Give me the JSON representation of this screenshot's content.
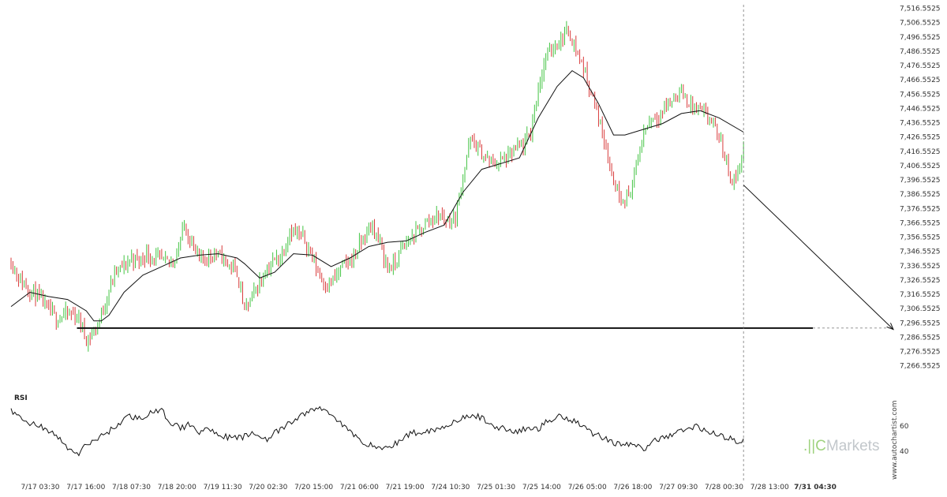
{
  "chart_data": {
    "type": "candlestick",
    "y_ticks": [
      "7,516.5525",
      "7,506.5525",
      "7,496.5525",
      "7,486.5525",
      "7,476.5525",
      "7,466.5525",
      "7,456.5525",
      "7,446.5525",
      "7,436.5525",
      "7,426.5525",
      "7,416.5525",
      "7,406.5525",
      "7,396.5525",
      "7,386.5525",
      "7,376.5525",
      "7,366.5525",
      "7,356.5525",
      "7,346.5525",
      "7,336.5525",
      "7,326.5525",
      "7,316.5525",
      "7,306.5525",
      "7,296.5525",
      "7,286.5525",
      "7,276.5525",
      "7,266.5525"
    ],
    "x_ticks": [
      "7/17 03:30",
      "7/17 16:00",
      "7/18 07:30",
      "7/18 20:00",
      "7/19 11:30",
      "7/20 02:30",
      "7/20 15:00",
      "7/21 06:00",
      "7/21 19:00",
      "7/24 10:30",
      "7/25 01:30",
      "7/25 14:00",
      "7/26 05:00",
      "7/26 18:00",
      "7/27 09:30",
      "7/28 00:30",
      "7/28 13:00",
      "7/31 04:30"
    ],
    "ylim": [
      7262,
      7518
    ],
    "up_color": "#43c443",
    "down_color": "#d83b3b",
    "price_path": [
      [
        0,
        7340
      ],
      [
        4,
        7328
      ],
      [
        8,
        7322
      ],
      [
        12,
        7318
      ],
      [
        16,
        7312
      ],
      [
        20,
        7305
      ],
      [
        24,
        7300
      ],
      [
        28,
        7302
      ],
      [
        32,
        7303
      ],
      [
        36,
        7300
      ],
      [
        40,
        7285
      ],
      [
        44,
        7290
      ],
      [
        48,
        7302
      ],
      [
        52,
        7320
      ],
      [
        56,
        7333
      ],
      [
        60,
        7336
      ],
      [
        64,
        7342
      ],
      [
        68,
        7340
      ],
      [
        72,
        7345
      ],
      [
        76,
        7342
      ],
      [
        80,
        7340
      ],
      [
        84,
        7338
      ],
      [
        88,
        7345
      ],
      [
        92,
        7365
      ],
      [
        96,
        7352
      ],
      [
        100,
        7340
      ],
      [
        104,
        7343
      ],
      [
        108,
        7345
      ],
      [
        112,
        7342
      ],
      [
        116,
        7337
      ],
      [
        120,
        7332
      ],
      [
        124,
        7305
      ],
      [
        128,
        7315
      ],
      [
        132,
        7325
      ],
      [
        136,
        7335
      ],
      [
        140,
        7340
      ],
      [
        144,
        7345
      ],
      [
        148,
        7362
      ],
      [
        152,
        7358
      ],
      [
        156,
        7355
      ],
      [
        160,
        7342
      ],
      [
        164,
        7330
      ],
      [
        168,
        7322
      ],
      [
        172,
        7328
      ],
      [
        176,
        7336
      ],
      [
        180,
        7340
      ],
      [
        184,
        7348
      ],
      [
        188,
        7358
      ],
      [
        192,
        7364
      ],
      [
        196,
        7352
      ],
      [
        200,
        7335
      ],
      [
        204,
        7338
      ],
      [
        208,
        7350
      ],
      [
        212,
        7355
      ],
      [
        216,
        7360
      ],
      [
        220,
        7366
      ],
      [
        224,
        7370
      ],
      [
        228,
        7372
      ],
      [
        232,
        7368
      ],
      [
        236,
        7370
      ],
      [
        240,
        7400
      ],
      [
        244,
        7425
      ],
      [
        248,
        7418
      ],
      [
        252,
        7412
      ],
      [
        256,
        7408
      ],
      [
        260,
        7410
      ],
      [
        264,
        7412
      ],
      [
        268,
        7418
      ],
      [
        272,
        7420
      ],
      [
        276,
        7430
      ],
      [
        280,
        7462
      ],
      [
        284,
        7482
      ],
      [
        288,
        7490
      ],
      [
        292,
        7495
      ],
      [
        296,
        7502
      ],
      [
        300,
        7488
      ],
      [
        304,
        7475
      ],
      [
        308,
        7458
      ],
      [
        312,
        7440
      ],
      [
        316,
        7420
      ],
      [
        320,
        7395
      ],
      [
        324,
        7385
      ],
      [
        328,
        7385
      ],
      [
        332,
        7405
      ],
      [
        336,
        7430
      ],
      [
        340,
        7440
      ],
      [
        344,
        7442
      ],
      [
        348,
        7448
      ],
      [
        352,
        7454
      ],
      [
        356,
        7458
      ],
      [
        360,
        7450
      ],
      [
        364,
        7446
      ],
      [
        368,
        7442
      ],
      [
        372,
        7438
      ],
      [
        376,
        7425
      ],
      [
        380,
        7410
      ],
      [
        383,
        7395
      ],
      [
        386,
        7402
      ],
      [
        389,
        7420
      ]
    ],
    "moving_average": [
      [
        0,
        7308
      ],
      [
        10,
        7318
      ],
      [
        20,
        7315
      ],
      [
        30,
        7313
      ],
      [
        40,
        7305
      ],
      [
        44,
        7298
      ],
      [
        48,
        7298
      ],
      [
        52,
        7302
      ],
      [
        60,
        7318
      ],
      [
        70,
        7330
      ],
      [
        80,
        7336
      ],
      [
        90,
        7342
      ],
      [
        100,
        7344
      ],
      [
        110,
        7345
      ],
      [
        120,
        7342
      ],
      [
        124,
        7338
      ],
      [
        132,
        7328
      ],
      [
        140,
        7332
      ],
      [
        150,
        7345
      ],
      [
        160,
        7344
      ],
      [
        170,
        7336
      ],
      [
        180,
        7342
      ],
      [
        190,
        7350
      ],
      [
        200,
        7353
      ],
      [
        210,
        7354
      ],
      [
        220,
        7360
      ],
      [
        230,
        7365
      ],
      [
        240,
        7388
      ],
      [
        250,
        7404
      ],
      [
        260,
        7408
      ],
      [
        270,
        7412
      ],
      [
        280,
        7440
      ],
      [
        290,
        7462
      ],
      [
        298,
        7473
      ],
      [
        304,
        7468
      ],
      [
        312,
        7450
      ],
      [
        320,
        7428
      ],
      [
        326,
        7428
      ],
      [
        336,
        7432
      ],
      [
        346,
        7436
      ],
      [
        356,
        7443
      ],
      [
        366,
        7445
      ],
      [
        376,
        7440
      ],
      [
        389,
        7430
      ]
    ],
    "support_level": 7293,
    "support_start_x": 35,
    "projection": {
      "from": [
        389,
        7393
      ],
      "to": [
        430,
        7292
      ]
    },
    "rsi": {
      "label": "RSI",
      "ylim": [
        30,
        85
      ],
      "y_ticks": [
        60,
        40
      ],
      "path": [
        [
          0,
          72
        ],
        [
          8,
          63
        ],
        [
          16,
          60
        ],
        [
          24,
          52
        ],
        [
          32,
          40
        ],
        [
          36,
          38
        ],
        [
          40,
          45
        ],
        [
          48,
          52
        ],
        [
          56,
          60
        ],
        [
          62,
          68
        ],
        [
          68,
          66
        ],
        [
          74,
          70
        ],
        [
          80,
          72
        ],
        [
          84,
          64
        ],
        [
          90,
          58
        ],
        [
          96,
          62
        ],
        [
          100,
          55
        ],
        [
          106,
          58
        ],
        [
          112,
          52
        ],
        [
          120,
          50
        ],
        [
          128,
          54
        ],
        [
          136,
          50
        ],
        [
          144,
          58
        ],
        [
          152,
          66
        ],
        [
          158,
          72
        ],
        [
          164,
          74
        ],
        [
          170,
          70
        ],
        [
          178,
          58
        ],
        [
          184,
          50
        ],
        [
          192,
          44
        ],
        [
          200,
          42
        ],
        [
          206,
          48
        ],
        [
          212,
          54
        ],
        [
          220,
          56
        ],
        [
          228,
          58
        ],
        [
          234,
          63
        ],
        [
          240,
          66
        ],
        [
          248,
          68
        ],
        [
          256,
          60
        ],
        [
          262,
          58
        ],
        [
          268,
          55
        ],
        [
          274,
          58
        ],
        [
          280,
          58
        ],
        [
          286,
          65
        ],
        [
          292,
          68
        ],
        [
          298,
          65
        ],
        [
          302,
          62
        ],
        [
          308,
          55
        ],
        [
          316,
          50
        ],
        [
          322,
          46
        ],
        [
          330,
          45
        ],
        [
          336,
          42
        ],
        [
          342,
          48
        ],
        [
          348,
          52
        ],
        [
          356,
          56
        ],
        [
          364,
          60
        ],
        [
          370,
          56
        ],
        [
          376,
          52
        ],
        [
          382,
          50
        ],
        [
          386,
          48
        ],
        [
          389,
          50
        ]
      ]
    }
  },
  "watermark": {
    "prefix": ".||C",
    "name": "Markets"
  },
  "credit": "www.autochartist.com"
}
